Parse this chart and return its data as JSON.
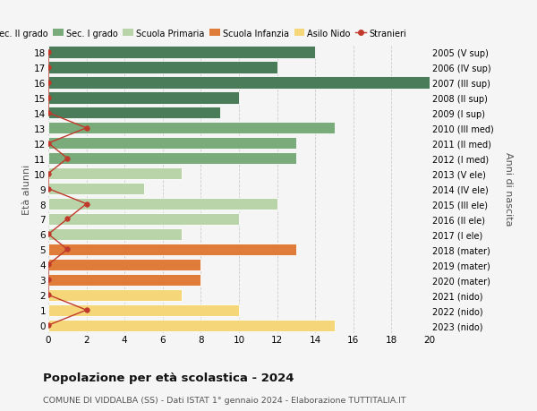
{
  "ages": [
    18,
    17,
    16,
    15,
    14,
    13,
    12,
    11,
    10,
    9,
    8,
    7,
    6,
    5,
    4,
    3,
    2,
    1,
    0
  ],
  "right_labels": [
    "2005 (V sup)",
    "2006 (IV sup)",
    "2007 (III sup)",
    "2008 (II sup)",
    "2009 (I sup)",
    "2010 (III med)",
    "2011 (II med)",
    "2012 (I med)",
    "2013 (V ele)",
    "2014 (IV ele)",
    "2015 (III ele)",
    "2016 (II ele)",
    "2017 (I ele)",
    "2018 (mater)",
    "2019 (mater)",
    "2020 (mater)",
    "2021 (nido)",
    "2022 (nido)",
    "2023 (nido)"
  ],
  "bar_values": [
    14,
    12,
    20,
    10,
    9,
    15,
    13,
    13,
    7,
    5,
    12,
    10,
    7,
    13,
    8,
    8,
    7,
    10,
    15
  ],
  "bar_colors": [
    "#4a7c59",
    "#4a7c59",
    "#4a7c59",
    "#4a7c59",
    "#4a7c59",
    "#7aab7a",
    "#7aab7a",
    "#7aab7a",
    "#b8d4a8",
    "#b8d4a8",
    "#b8d4a8",
    "#b8d4a8",
    "#b8d4a8",
    "#e07c3a",
    "#e07c3a",
    "#e07c3a",
    "#f5d77a",
    "#f5d77a",
    "#f5d77a"
  ],
  "stranieri_values": [
    0,
    0,
    0,
    0,
    0,
    2,
    0,
    1,
    0,
    0,
    2,
    1,
    0,
    1,
    0,
    0,
    0,
    2,
    0
  ],
  "legend_labels": [
    "Sec. II grado",
    "Sec. I grado",
    "Scuola Primaria",
    "Scuola Infanzia",
    "Asilo Nido",
    "Stranieri"
  ],
  "legend_colors": [
    "#4a7c59",
    "#7aab7a",
    "#b8d4a8",
    "#e07c3a",
    "#f5d77a",
    "#c0392b"
  ],
  "title": "Popolazione per età scolastica - 2024",
  "subtitle": "COMUNE DI VIDDALBA (SS) - Dati ISTAT 1° gennaio 2024 - Elaborazione TUTTITALIA.IT",
  "ylabel_left": "Età alunni",
  "ylabel_right": "Anni di nascita",
  "xlim": [
    0,
    20
  ],
  "bg_color": "#f5f5f5",
  "grid_color": "#cccccc",
  "stranieri_color": "#c0392b"
}
